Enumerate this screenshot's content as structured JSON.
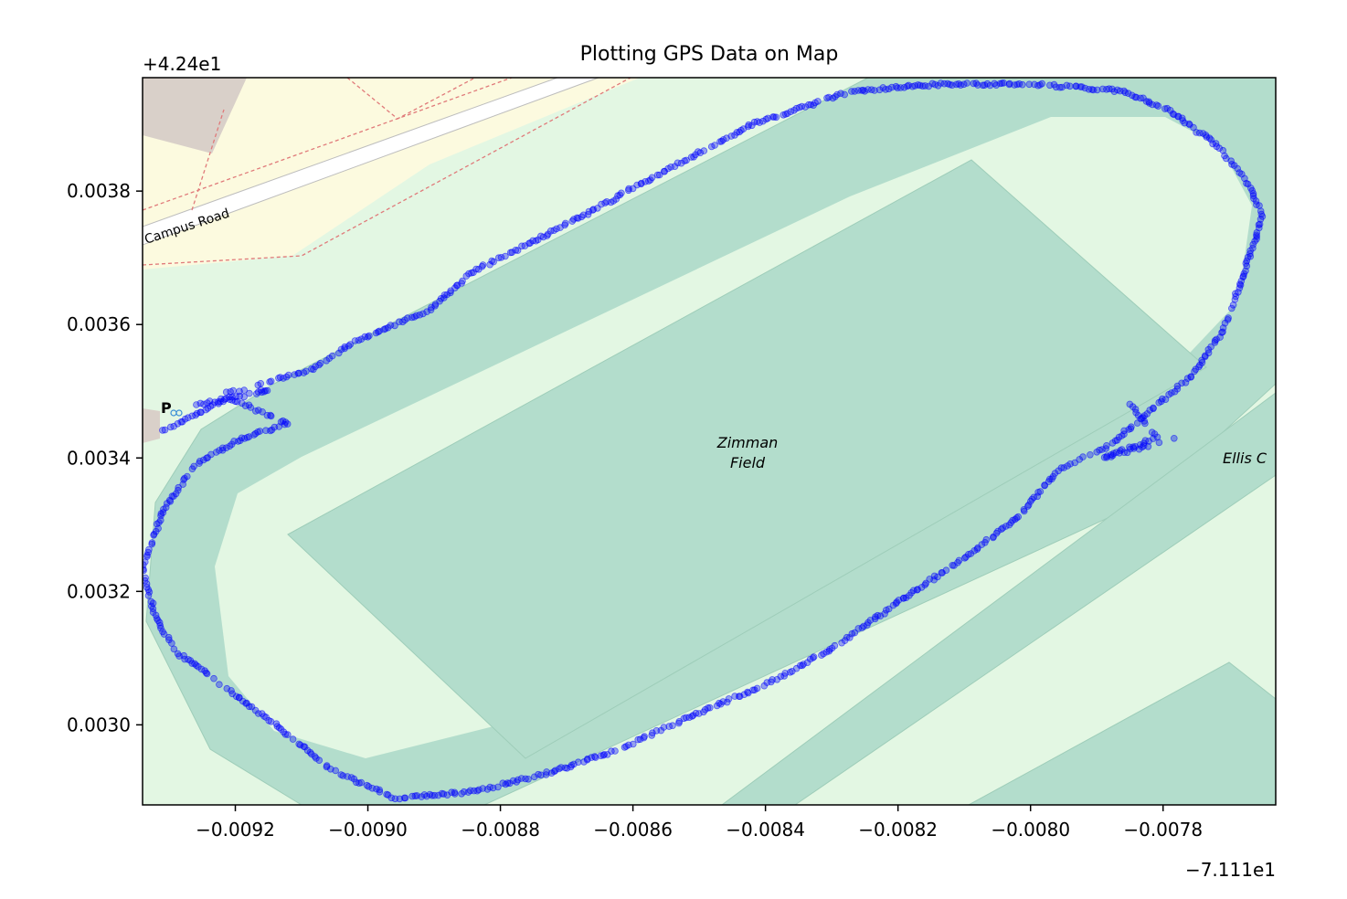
{
  "chart_data": {
    "type": "scatter",
    "title": "Plotting GPS Data on Map",
    "xlabel": "",
    "ylabel": "",
    "x_offset_label": "−7.111e1",
    "y_offset_label": "+4.24e1",
    "xlim": [
      -0.00934,
      -0.00763
    ],
    "ylim": [
      0.00288,
      0.00397
    ],
    "x_ticks": [
      {
        "value": -0.0092,
        "label": "−0.0092"
      },
      {
        "value": -0.009,
        "label": "−0.0090"
      },
      {
        "value": -0.0088,
        "label": "−0.0088"
      },
      {
        "value": -0.0086,
        "label": "−0.0086"
      },
      {
        "value": -0.0084,
        "label": "−0.0084"
      },
      {
        "value": -0.0082,
        "label": "−0.0082"
      },
      {
        "value": -0.008,
        "label": "−0.0080"
      },
      {
        "value": -0.0078,
        "label": "−0.0078"
      }
    ],
    "y_ticks": [
      {
        "value": 0.003,
        "label": "0.0030"
      },
      {
        "value": 0.0032,
        "label": "0.0032"
      },
      {
        "value": 0.0034,
        "label": "0.0034"
      },
      {
        "value": 0.0036,
        "label": "0.0036"
      },
      {
        "value": 0.0038,
        "label": "0.0038"
      }
    ],
    "grid": false,
    "marker_color": "#0000ff",
    "background": "map",
    "map_labels": [
      "Campus Road",
      "Zimman",
      "Field",
      "Ellis C"
    ],
    "track": [
      [
        -0.00931,
        0.00344
      ],
      [
        -0.00925,
        0.00347
      ],
      [
        -0.00921,
        0.00349
      ],
      [
        -0.00912,
        0.00345
      ],
      [
        -0.00919,
        0.00343
      ],
      [
        -0.00926,
        0.00339
      ],
      [
        -0.00931,
        0.00332
      ],
      [
        -0.00934,
        0.00323
      ],
      [
        -0.00932,
        0.00316
      ],
      [
        -0.00929,
        0.00311
      ],
      [
        -0.00922,
        0.00306
      ],
      [
        -0.00914,
        0.003
      ],
      [
        -0.00905,
        0.00293
      ],
      [
        -0.00896,
        0.00289
      ],
      [
        -0.00884,
        0.0029
      ],
      [
        -0.00872,
        0.00293
      ],
      [
        -0.00863,
        0.00296
      ],
      [
        -0.00852,
        0.00301
      ],
      [
        -0.0084,
        0.00306
      ],
      [
        -0.00829,
        0.00312
      ],
      [
        -0.00819,
        0.00319
      ],
      [
        -0.0081,
        0.00325
      ],
      [
        -0.00802,
        0.00331
      ],
      [
        -0.00796,
        0.00338
      ],
      [
        -0.00788,
        0.00342
      ],
      [
        -0.00782,
        0.00347
      ],
      [
        -0.00776,
        0.00352
      ],
      [
        -0.00771,
        0.00359
      ],
      [
        -0.00768,
        0.00367
      ],
      [
        -0.00765,
        0.00376
      ],
      [
        -0.00767,
        0.00381
      ],
      [
        -0.00772,
        0.00387
      ],
      [
        -0.00779,
        0.00392
      ],
      [
        -0.00786,
        0.00395
      ],
      [
        -0.00799,
        0.00396
      ],
      [
        -0.00814,
        0.00396
      ],
      [
        -0.00827,
        0.00395
      ],
      [
        -0.00842,
        0.0039
      ],
      [
        -0.00857,
        0.00382
      ],
      [
        -0.0087,
        0.00375
      ],
      [
        -0.00884,
        0.00368
      ],
      [
        -0.00891,
        0.00362
      ],
      [
        -0.00901,
        0.00358
      ],
      [
        -0.00909,
        0.00353
      ],
      [
        -0.00917,
        0.00351
      ]
    ],
    "stray_track": [
      [
        -0.00785,
        0.00348
      ],
      [
        -0.00781,
        0.00343
      ],
      [
        -0.00789,
        0.0034
      ],
      [
        -0.00778,
        0.00343
      ]
    ],
    "parking_stray": [
      [
        -0.00926,
        0.00348
      ],
      [
        -0.00915,
        0.0035
      ],
      [
        -0.00922,
        0.0035
      ]
    ]
  }
}
